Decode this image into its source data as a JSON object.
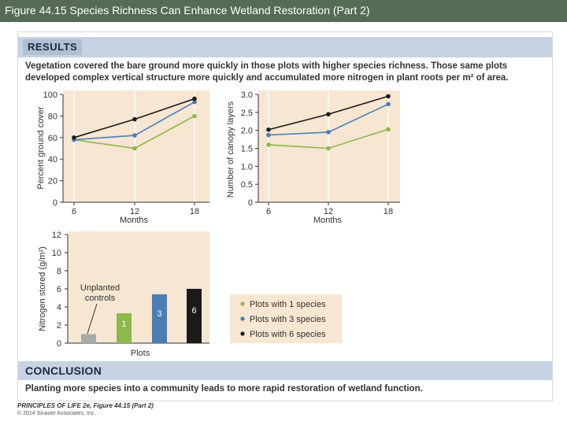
{
  "slide": {
    "title": "Figure 44.15 Species Richness Can Enhance Wetland Restoration (Part 2)"
  },
  "results": {
    "heading": "RESULTS",
    "text_line1": "Vegetation covered the bare ground more quickly in those plots with higher species richness. Those same plots",
    "text_line2": "developed complex vertical structure more quickly and accumulated more nitrogen in plant roots per m² of area."
  },
  "conclusion": {
    "heading": "CONCLUSION",
    "text": "Planting more species into a community leads to more rapid restoration of wetland function."
  },
  "credits": {
    "source": "PRINCIPLES OF LIFE 2e, Figure 44.15 (Part 2)",
    "copyright": "© 2014 Sinauer Associates, Inc."
  },
  "legend": {
    "items": [
      {
        "label": "Plots with 1 species",
        "color": "#8db84a"
      },
      {
        "label": "Plots with 3 species",
        "color": "#4a7fb5"
      },
      {
        "label": "Plots with 6 species",
        "color": "#1a1a1a"
      }
    ]
  },
  "chart_data": [
    {
      "type": "line",
      "title": "",
      "xlabel": "Months",
      "ylabel": "Percent ground cover",
      "x": [
        6,
        12,
        18
      ],
      "xticks": [
        "6",
        "12",
        "18"
      ],
      "ylim": [
        0,
        100
      ],
      "yticks": [
        "0",
        "20",
        "40",
        "60",
        "80",
        "100"
      ],
      "series": [
        {
          "name": "Plots with 1 species",
          "color": "#8db84a",
          "values": [
            58,
            50,
            80
          ]
        },
        {
          "name": "Plots with 3 species",
          "color": "#4a7fb5",
          "values": [
            58,
            62,
            93
          ]
        },
        {
          "name": "Plots with 6 species",
          "color": "#1a1a1a",
          "values": [
            60,
            77,
            96
          ]
        }
      ]
    },
    {
      "type": "line",
      "title": "",
      "xlabel": "Months",
      "ylabel": "Number of canopy layers",
      "x": [
        6,
        12,
        18
      ],
      "xticks": [
        "6",
        "12",
        "18"
      ],
      "ylim": [
        0,
        3.0
      ],
      "yticks": [
        "0",
        "0.5",
        "1.0",
        "1.5",
        "2.0",
        "2.5",
        "3.0"
      ],
      "series": [
        {
          "name": "Plots with 1 species",
          "color": "#8db84a",
          "values": [
            1.6,
            1.5,
            2.03
          ]
        },
        {
          "name": "Plots with 3 species",
          "color": "#4a7fb5",
          "values": [
            1.87,
            1.95,
            2.73
          ]
        },
        {
          "name": "Plots with 6 species",
          "color": "#1a1a1a",
          "values": [
            2.02,
            2.45,
            2.95
          ]
        }
      ]
    },
    {
      "type": "bar",
      "title": "",
      "xlabel": "Plots",
      "ylabel": "Nitrogen stored (g/m²)",
      "ylim": [
        0,
        12
      ],
      "yticks": [
        "0",
        "2",
        "4",
        "6",
        "8",
        "10",
        "12"
      ],
      "categories": [
        "Unplanted controls",
        "1",
        "3",
        "6"
      ],
      "bar_labels": [
        "",
        "1",
        "3",
        "6"
      ],
      "values": [
        1.0,
        3.3,
        5.4,
        6.0
      ],
      "colors": [
        "#a9a9a9",
        "#8db84a",
        "#4a7fb5",
        "#1a1a1a"
      ],
      "annotation_line1": "Unplanted",
      "annotation_line2": "controls"
    }
  ]
}
